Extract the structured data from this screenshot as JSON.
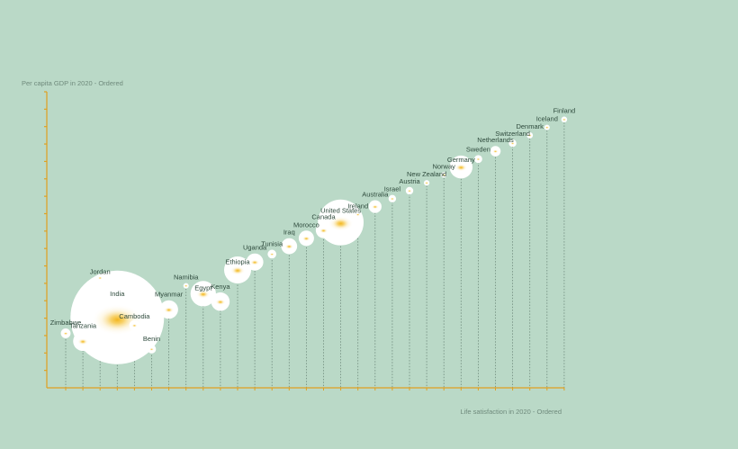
{
  "colors": {
    "background": "#bad9c7",
    "axis": "#e0a020",
    "stem": "#6f8a7c",
    "bubble_fill": "#ffffff",
    "bubble_glow": "#f3b61f",
    "label": "#2e4a3c",
    "axis_title": "#6f8a7c"
  },
  "chart_data": {
    "type": "scatter",
    "ylabel": "Per capita GDP in 2020 - Ordered",
    "xlabel": "Life satisfaction in 2020 - Ordered",
    "encoding": "x and y are ordinal ranks (1 = lowest); bubble size = population in millions",
    "y_ticks": 17,
    "grid": false,
    "legend": "none",
    "points": [
      {
        "name": "Zimbabwe",
        "x": 1,
        "y": 3,
        "population": 15
      },
      {
        "name": "Tanzania",
        "x": 2,
        "y": 2,
        "population": 60
      },
      {
        "name": "Jordan",
        "x": 3,
        "y": 10,
        "population": 10
      },
      {
        "name": "India",
        "x": 4,
        "y": 5,
        "population": 1380
      },
      {
        "name": "Cambodia",
        "x": 5,
        "y": 4,
        "population": 17
      },
      {
        "name": "Benin",
        "x": 6,
        "y": 1,
        "population": 12
      },
      {
        "name": "Myanmar",
        "x": 7,
        "y": 6,
        "population": 54
      },
      {
        "name": "Namibia",
        "x": 8,
        "y": 9,
        "population": 2.5
      },
      {
        "name": "Egypt",
        "x": 9,
        "y": 8,
        "population": 102
      },
      {
        "name": "Kenya",
        "x": 10,
        "y": 7,
        "population": 54
      },
      {
        "name": "Ethiopia",
        "x": 11,
        "y": 11,
        "population": 115
      },
      {
        "name": "Uganda",
        "x": 12,
        "y": 12,
        "population": 46
      },
      {
        "name": "Tunisia",
        "x": 13,
        "y": 13,
        "population": 12
      },
      {
        "name": "Iraq",
        "x": 14,
        "y": 14,
        "population": 40
      },
      {
        "name": "Morocco",
        "x": 15,
        "y": 15,
        "population": 37
      },
      {
        "name": "Canada",
        "x": 16,
        "y": 16,
        "population": 38
      },
      {
        "name": "United States",
        "x": 17,
        "y": 17,
        "population": 330
      },
      {
        "name": "Ireland",
        "x": 18,
        "y": 18,
        "population": 5
      },
      {
        "name": "Australia",
        "x": 19,
        "y": 19,
        "population": 26
      },
      {
        "name": "Israel",
        "x": 20,
        "y": 20,
        "population": 9
      },
      {
        "name": "Austria",
        "x": 21,
        "y": 21,
        "population": 9
      },
      {
        "name": "New Zealand",
        "x": 22,
        "y": 22,
        "population": 5
      },
      {
        "name": "Norway",
        "x": 23,
        "y": 23,
        "population": 5
      },
      {
        "name": "Germany",
        "x": 24,
        "y": 24,
        "population": 83
      },
      {
        "name": "Sweden",
        "x": 25,
        "y": 25,
        "population": 10
      },
      {
        "name": "Netherlands",
        "x": 26,
        "y": 26,
        "population": 17
      },
      {
        "name": "Switzerland",
        "x": 27,
        "y": 27,
        "population": 9
      },
      {
        "name": "Denmark",
        "x": 28,
        "y": 28,
        "population": 6
      },
      {
        "name": "Iceland",
        "x": 29,
        "y": 29,
        "population": 0.4
      },
      {
        "name": "Finland",
        "x": 30,
        "y": 30,
        "population": 5.5
      }
    ]
  }
}
